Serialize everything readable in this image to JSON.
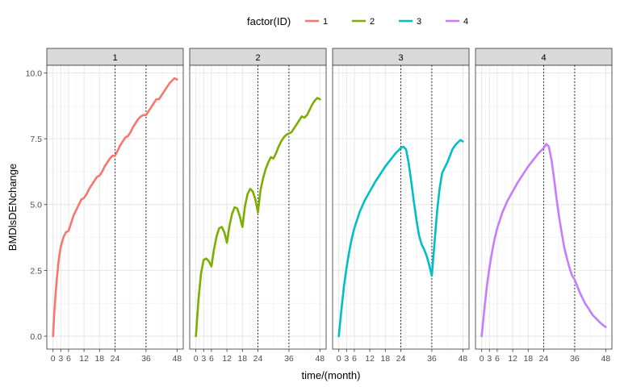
{
  "chart_data": {
    "type": "line",
    "xlabel": "time/(month)",
    "ylabel": "BMDlsDENchange",
    "x_ticks": [
      0,
      3,
      6,
      12,
      18,
      24,
      36,
      48
    ],
    "y_ticks": [
      0.0,
      2.5,
      5.0,
      7.5,
      10.0
    ],
    "y_tick_labels": [
      "0.0",
      "2.5",
      "5.0",
      "7.5",
      "10.0"
    ],
    "xlim": [
      -2.4,
      50.4
    ],
    "ylim": [
      -0.49,
      10.29
    ],
    "grid": true,
    "vlines": [
      24,
      36
    ],
    "legend": {
      "title": "factor(ID)",
      "position": "top",
      "labels": [
        "1",
        "2",
        "3",
        "4"
      ]
    },
    "colors": [
      "#F8766D",
      "#7CAE00",
      "#00BFC4",
      "#C77CFF"
    ],
    "panels": [
      {
        "strip": "1",
        "series": [
          {
            "name": "1",
            "x": [
              0,
              0.5,
              1,
              1.5,
              2,
              2.5,
              3,
              4,
              5,
              6,
              7,
              8,
              9,
              10,
              11,
              12,
              13,
              14,
              15,
              16,
              17,
              18,
              19,
              20,
              21,
              22,
              23,
              24,
              25,
              26,
              27,
              28,
              29,
              30,
              31,
              32,
              33,
              34,
              35,
              36,
              37,
              38,
              39,
              40,
              41,
              42,
              43,
              44,
              45,
              46,
              47,
              48
            ],
            "y": [
              0.0,
              0.9,
              1.6,
              2.2,
              2.7,
              3.1,
              3.4,
              3.75,
              3.95,
              4.0,
              4.3,
              4.6,
              4.8,
              5.0,
              5.2,
              5.25,
              5.4,
              5.6,
              5.75,
              5.9,
              6.05,
              6.1,
              6.25,
              6.45,
              6.6,
              6.75,
              6.85,
              6.85,
              7.05,
              7.25,
              7.4,
              7.55,
              7.6,
              7.75,
              7.95,
              8.1,
              8.25,
              8.35,
              8.4,
              8.4,
              8.55,
              8.7,
              8.85,
              9.0,
              9.0,
              9.15,
              9.3,
              9.45,
              9.6,
              9.7,
              9.8,
              9.75
            ]
          }
        ]
      },
      {
        "strip": "2",
        "series": [
          {
            "name": "2",
            "x": [
              0,
              1,
              2,
              3,
              4,
              5,
              6,
              7,
              8,
              9,
              10,
              11,
              12,
              13,
              14,
              15,
              16,
              17,
              18,
              19,
              20,
              21,
              22,
              23,
              24,
              25,
              26,
              27,
              28,
              29,
              30,
              31,
              32,
              33,
              34,
              35,
              36,
              37,
              38,
              39,
              40,
              41,
              42,
              43,
              44,
              45,
              46,
              47,
              48
            ],
            "y": [
              0.0,
              1.4,
              2.4,
              2.9,
              2.95,
              2.85,
              2.65,
              3.3,
              3.8,
              4.1,
              4.15,
              3.95,
              3.55,
              4.2,
              4.65,
              4.9,
              4.85,
              4.55,
              4.15,
              4.95,
              5.4,
              5.6,
              5.5,
              5.2,
              4.7,
              5.55,
              6.0,
              6.35,
              6.6,
              6.8,
              6.75,
              6.95,
              7.2,
              7.4,
              7.55,
              7.65,
              7.7,
              7.75,
              7.9,
              8.05,
              8.2,
              8.35,
              8.3,
              8.4,
              8.6,
              8.8,
              8.95,
              9.05,
              9.0
            ]
          }
        ]
      },
      {
        "strip": "3",
        "series": [
          {
            "name": "3",
            "x": [
              0,
              1,
              2,
              3,
              4,
              5,
              6,
              8,
              10,
              12,
              14,
              16,
              18,
              20,
              22,
              24,
              25,
              26,
              27,
              28,
              29,
              30,
              31,
              32,
              33,
              34,
              35,
              36,
              37,
              38,
              39,
              40,
              41,
              42,
              43,
              44,
              45,
              46,
              47,
              48
            ],
            "y": [
              0.0,
              1.0,
              1.9,
              2.6,
              3.2,
              3.7,
              4.1,
              4.7,
              5.15,
              5.5,
              5.85,
              6.15,
              6.45,
              6.7,
              6.95,
              7.15,
              7.2,
              7.1,
              6.6,
              5.9,
              5.15,
              4.45,
              3.85,
              3.5,
              3.3,
              3.05,
              2.7,
              2.3,
              3.5,
              4.7,
              5.6,
              6.2,
              6.4,
              6.6,
              6.85,
              7.1,
              7.25,
              7.35,
              7.45,
              7.4
            ]
          }
        ]
      },
      {
        "strip": "4",
        "series": [
          {
            "name": "4",
            "x": [
              0,
              1,
              2,
              3,
              4,
              5,
              6,
              8,
              10,
              12,
              14,
              16,
              18,
              20,
              22,
              24,
              25,
              26,
              27,
              28,
              29,
              30,
              31,
              32,
              33,
              34,
              35,
              36,
              37,
              38,
              39,
              40,
              41,
              42,
              43,
              44,
              45,
              46,
              47,
              48
            ],
            "y": [
              0.0,
              1.0,
              1.9,
              2.6,
              3.2,
              3.7,
              4.1,
              4.7,
              5.15,
              5.5,
              5.85,
              6.15,
              6.45,
              6.7,
              6.95,
              7.15,
              7.3,
              7.2,
              6.7,
              6.0,
              5.2,
              4.5,
              3.9,
              3.35,
              2.95,
              2.6,
              2.3,
              2.15,
              1.9,
              1.65,
              1.45,
              1.25,
              1.1,
              0.95,
              0.8,
              0.7,
              0.6,
              0.5,
              0.42,
              0.35
            ]
          }
        ]
      }
    ]
  }
}
